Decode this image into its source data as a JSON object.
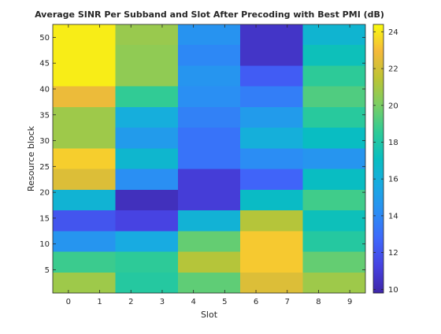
{
  "chart_data": {
    "type": "heatmap",
    "title": "Average SINR Per Subband and Slot After Precoding with Best PMI (dB)",
    "xlabel": "Slot",
    "ylabel": "Resource block",
    "x_ticks": [
      0,
      1,
      2,
      3,
      4,
      5,
      6,
      7,
      8,
      9
    ],
    "y_ticks": [
      5,
      10,
      15,
      20,
      25,
      30,
      35,
      40,
      45,
      50
    ],
    "xlim": [
      -0.5,
      9.5
    ],
    "ylim": [
      0.5,
      52.5
    ],
    "cell_width_slots": 2,
    "slot_starts": [
      0,
      2,
      4,
      6,
      8
    ],
    "subband_starts": [
      1,
      5,
      9,
      13,
      17,
      21,
      25,
      29,
      33,
      37,
      41,
      45,
      49
    ],
    "subband_size_rb": 4,
    "values": [
      [
        20.8,
        18.2,
        19.5,
        22.3,
        20.8
      ],
      [
        18.8,
        18.5,
        21.3,
        23.3,
        19.6
      ],
      [
        14.6,
        15.7,
        19.6,
        23.3,
        18.2
      ],
      [
        12.0,
        11.3,
        16.2,
        21.3,
        17.3
      ],
      [
        16.3,
        10.3,
        11.0,
        16.9,
        18.9
      ],
      [
        22.3,
        14.3,
        11.0,
        12.6,
        17.0
      ],
      [
        23.4,
        16.5,
        13.2,
        14.2,
        14.6
      ],
      [
        20.8,
        14.9,
        13.2,
        16.0,
        17.0
      ],
      [
        20.8,
        15.9,
        13.7,
        14.9,
        18.3
      ],
      [
        22.7,
        18.6,
        14.3,
        13.6,
        19.2
      ],
      [
        24.1,
        20.5,
        14.6,
        12.3,
        18.5
      ],
      [
        24.1,
        20.5,
        14.0,
        10.6,
        17.3
      ],
      [
        24.1,
        20.7,
        14.5,
        10.6,
        16.4
      ]
    ],
    "colorbar": {
      "min": 9.8,
      "max": 24.4,
      "ticks": [
        10,
        12,
        14,
        16,
        18,
        20,
        22,
        24
      ],
      "colormap": "parula"
    },
    "grid": false,
    "legend": "none"
  }
}
